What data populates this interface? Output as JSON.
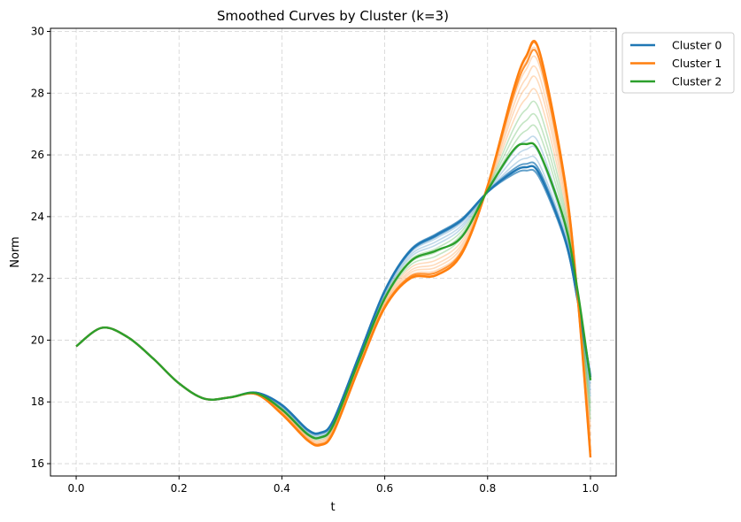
{
  "chart_data": {
    "type": "line",
    "title": "Smoothed Curves by Cluster (k=3)",
    "xlabel": "t",
    "ylabel": "Norm",
    "xlim": [
      -0.05,
      1.05
    ],
    "ylim": [
      15.6,
      30.1
    ],
    "xticks": [
      "0.0",
      "0.2",
      "0.4",
      "0.6",
      "0.8",
      "1.0"
    ],
    "xtick_values": [
      0.0,
      0.2,
      0.4,
      0.6,
      0.8,
      1.0
    ],
    "yticks": [
      "16",
      "18",
      "20",
      "22",
      "24",
      "26",
      "28",
      "30"
    ],
    "ytick_values": [
      16,
      18,
      20,
      22,
      24,
      26,
      28,
      30
    ],
    "grid": true,
    "legend_position": "outside upper right",
    "x": [
      0.0,
      0.05,
      0.1,
      0.15,
      0.2,
      0.25,
      0.3,
      0.35,
      0.4,
      0.45,
      0.475,
      0.5,
      0.55,
      0.6,
      0.65,
      0.7,
      0.75,
      0.8,
      0.85,
      0.875,
      0.9,
      0.95,
      0.975,
      1.0
    ],
    "series": [
      {
        "name": "Cluster 0",
        "color": "#1f77b4",
        "values": [
          19.8,
          20.4,
          20.1,
          19.4,
          18.6,
          18.1,
          18.15,
          18.3,
          17.9,
          17.1,
          17.0,
          17.4,
          19.5,
          21.6,
          22.9,
          23.4,
          23.9,
          24.8,
          25.45,
          25.6,
          25.4,
          23.3,
          21.3,
          18.8
        ]
      },
      {
        "name": "Cluster 1",
        "color": "#ff7f0e",
        "values": [
          19.8,
          20.4,
          20.1,
          19.4,
          18.6,
          18.1,
          18.15,
          18.25,
          17.6,
          16.75,
          16.6,
          17.0,
          19.1,
          21.05,
          22.0,
          22.1,
          22.8,
          25.0,
          28.1,
          29.2,
          29.4,
          25.2,
          21.4,
          16.2
        ]
      },
      {
        "name": "Cluster 2",
        "color": "#2ca02c",
        "values": [
          19.8,
          20.4,
          20.1,
          19.4,
          18.6,
          18.1,
          18.15,
          18.28,
          17.75,
          16.95,
          16.85,
          17.25,
          19.35,
          21.35,
          22.55,
          22.9,
          23.35,
          24.85,
          26.15,
          26.35,
          26.1,
          23.8,
          21.6,
          18.7
        ]
      }
    ]
  }
}
